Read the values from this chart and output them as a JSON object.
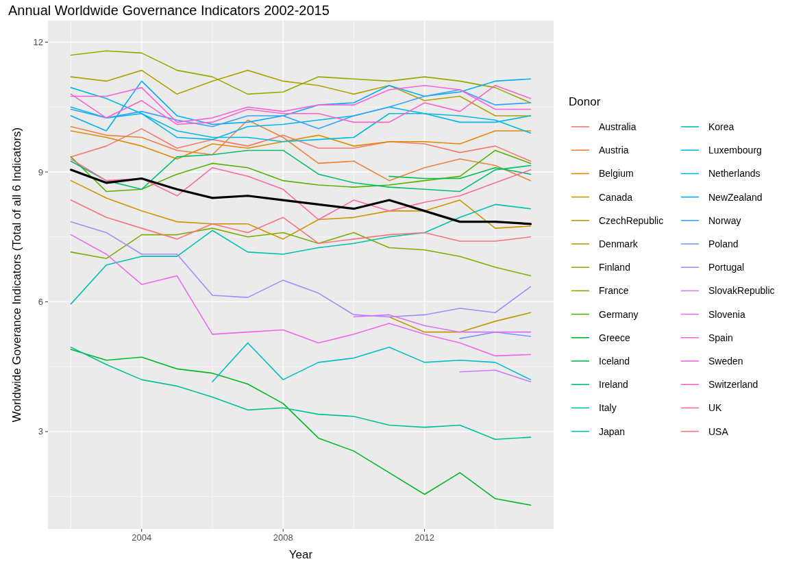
{
  "chart_data": {
    "type": "line",
    "title": "Annual Worldwide Governance Indicators 2002-2015",
    "xlabel": "Year",
    "ylabel": "Worldwide Goverance Indicators (Total of all 6 Indicators)",
    "legend_title": "Donor",
    "legend": "right",
    "grid": true,
    "x": [
      2002,
      2003,
      2004,
      2005,
      2006,
      2007,
      2008,
      2009,
      2010,
      2011,
      2012,
      2013,
      2014,
      2015
    ],
    "xlim": [
      2001.35,
      2015.65
    ],
    "xticks": [
      2004,
      2008,
      2012
    ],
    "ylim": [
      0.75,
      12.5
    ],
    "yticks": [
      3,
      6,
      9,
      12
    ],
    "series": [
      {
        "name": "Australia",
        "color": "#f8766d",
        "values": [
          9.35,
          9.6,
          10.0,
          9.55,
          9.75,
          9.6,
          9.85,
          9.55,
          9.55,
          9.7,
          9.65,
          9.45,
          9.6,
          9.25
        ]
      },
      {
        "name": "Austria",
        "color": "#ec823c",
        "values": [
          10.05,
          9.85,
          9.8,
          9.5,
          9.4,
          10.2,
          9.8,
          9.2,
          9.25,
          8.8,
          9.1,
          9.3,
          9.15,
          8.8
        ]
      },
      {
        "name": "Belgium",
        "color": "#e18a00",
        "values": [
          9.95,
          9.8,
          9.6,
          9.3,
          9.65,
          9.55,
          9.7,
          9.85,
          9.6,
          9.7,
          9.7,
          9.65,
          9.95,
          9.95
        ]
      },
      {
        "name": "Canada",
        "color": "#d09400",
        "values": [
          8.8,
          8.4,
          8.1,
          7.85,
          7.8,
          7.8,
          7.45,
          7.9,
          7.95,
          8.1,
          8.1,
          8.35,
          7.7,
          7.75
        ]
      },
      {
        "name": "CzechRepublic",
        "color": "#c09b00",
        "values": [
          null,
          null,
          null,
          null,
          null,
          null,
          null,
          null,
          null,
          5.65,
          5.3,
          5.3,
          5.55,
          5.75
        ]
      },
      {
        "name": "Denmark",
        "color": "#afa100",
        "values": [
          11.2,
          11.1,
          11.35,
          10.8,
          11.1,
          11.35,
          11.1,
          11.0,
          10.8,
          11.0,
          10.65,
          10.75,
          10.3,
          10.3
        ]
      },
      {
        "name": "Finland",
        "color": "#97a800",
        "values": [
          11.7,
          11.8,
          11.75,
          11.35,
          11.2,
          10.8,
          10.85,
          11.2,
          11.15,
          11.1,
          11.2,
          11.1,
          10.95,
          10.6
        ]
      },
      {
        "name": "France",
        "color": "#7cae00",
        "values": [
          7.15,
          7.0,
          7.55,
          7.55,
          7.7,
          7.5,
          7.6,
          7.35,
          7.6,
          7.25,
          7.2,
          7.05,
          6.8,
          6.6
        ]
      },
      {
        "name": "Germany",
        "color": "#55b300",
        "values": [
          9.35,
          8.55,
          8.6,
          8.95,
          9.2,
          9.1,
          8.8,
          8.7,
          8.65,
          8.7,
          8.8,
          8.9,
          9.5,
          9.2
        ]
      },
      {
        "name": "Greece",
        "color": "#00b81f",
        "values": [
          4.9,
          4.65,
          4.72,
          4.45,
          4.35,
          4.1,
          3.65,
          2.85,
          2.55,
          2.05,
          1.55,
          2.05,
          1.45,
          1.3
        ]
      },
      {
        "name": "Iceland",
        "color": "#00bb4e",
        "values": [
          null,
          null,
          null,
          null,
          null,
          null,
          null,
          null,
          null,
          8.9,
          8.85,
          8.85,
          9.1,
          8.95
        ]
      },
      {
        "name": "Ireland",
        "color": "#00be6c",
        "values": [
          9.25,
          8.8,
          8.6,
          9.35,
          9.4,
          9.5,
          9.5,
          8.95,
          8.75,
          8.65,
          8.6,
          8.55,
          9.05,
          9.15
        ]
      },
      {
        "name": "Italy",
        "color": "#00c094",
        "values": [
          4.95,
          4.55,
          4.2,
          4.05,
          3.8,
          3.5,
          3.55,
          3.4,
          3.35,
          3.15,
          3.1,
          3.15,
          2.82,
          2.87
        ]
      },
      {
        "name": "Japan",
        "color": "#00c0af",
        "values": [
          5.95,
          6.85,
          7.05,
          7.05,
          7.65,
          7.15,
          7.1,
          7.25,
          7.35,
          7.5,
          7.6,
          7.95,
          8.25,
          8.15
        ]
      },
      {
        "name": "Korea",
        "color": "#00bfc4",
        "values": [
          null,
          null,
          null,
          null,
          4.15,
          5.05,
          4.2,
          4.6,
          4.7,
          4.95,
          4.6,
          4.65,
          4.6,
          4.2
        ]
      },
      {
        "name": "Luxembourg",
        "color": "#00bbd9",
        "values": [
          10.95,
          10.7,
          10.35,
          9.95,
          9.8,
          9.8,
          9.7,
          9.75,
          9.8,
          10.35,
          10.35,
          10.3,
          10.2,
          9.9
        ]
      },
      {
        "name": "Netherlands",
        "color": "#00b6eb",
        "values": [
          10.5,
          10.25,
          10.35,
          9.8,
          9.75,
          10.05,
          10.1,
          10.2,
          10.3,
          10.5,
          10.35,
          10.15,
          10.15,
          10.3
        ]
      },
      {
        "name": "NewZealand",
        "color": "#00adfa",
        "values": [
          10.3,
          9.95,
          11.1,
          10.3,
          10.1,
          10.15,
          10.3,
          10.55,
          10.6,
          11.0,
          10.75,
          10.85,
          11.1,
          11.15
        ]
      },
      {
        "name": "Norway",
        "color": "#35a2ff",
        "values": [
          10.45,
          10.25,
          10.4,
          10.2,
          10.05,
          10.3,
          10.3,
          10.0,
          10.3,
          10.5,
          10.75,
          10.9,
          10.55,
          10.6
        ]
      },
      {
        "name": "Poland",
        "color": "#7997ff",
        "values": [
          null,
          null,
          null,
          null,
          null,
          null,
          null,
          null,
          null,
          null,
          null,
          5.15,
          5.3,
          5.2
        ]
      },
      {
        "name": "Portugal",
        "color": "#a58aff",
        "values": [
          7.85,
          7.6,
          7.1,
          7.1,
          6.15,
          6.1,
          6.5,
          6.2,
          5.7,
          5.65,
          5.7,
          5.85,
          5.75,
          6.35
        ]
      },
      {
        "name": "SlovakRepublic",
        "color": "#c77cff",
        "values": [
          null,
          null,
          null,
          null,
          null,
          null,
          null,
          null,
          null,
          null,
          null,
          4.38,
          4.42,
          4.15
        ]
      },
      {
        "name": "Slovenia",
        "color": "#de71f9",
        "values": [
          null,
          null,
          null,
          null,
          null,
          null,
          null,
          null,
          5.65,
          5.7,
          5.45,
          5.3,
          5.3,
          5.3
        ]
      },
      {
        "name": "Spain",
        "color": "#ed68ed",
        "values": [
          7.55,
          7.1,
          6.4,
          6.6,
          5.25,
          5.3,
          5.35,
          5.05,
          5.25,
          5.5,
          5.25,
          5.05,
          4.75,
          4.78
        ]
      },
      {
        "name": "Sweden",
        "color": "#f962dd",
        "values": [
          10.75,
          10.75,
          10.95,
          10.15,
          10.25,
          10.5,
          10.4,
          10.55,
          10.55,
          10.9,
          11.0,
          10.9,
          10.45,
          10.45
        ]
      },
      {
        "name": "Switzerland",
        "color": "#ff61c9",
        "values": [
          10.8,
          10.25,
          10.65,
          10.1,
          10.15,
          10.45,
          10.35,
          10.35,
          10.15,
          10.15,
          10.6,
          10.4,
          11.0,
          10.7
        ]
      },
      {
        "name": "UK",
        "color": "#ff67a4",
        "values": [
          9.3,
          8.8,
          8.85,
          8.45,
          9.1,
          8.9,
          8.6,
          7.9,
          8.35,
          8.1,
          8.3,
          8.45,
          8.75,
          9.05
        ]
      },
      {
        "name": "USA",
        "color": "#fb727e",
        "values": [
          8.35,
          7.95,
          7.7,
          7.45,
          7.8,
          7.6,
          7.95,
          7.35,
          7.45,
          7.55,
          7.6,
          7.4,
          7.4,
          7.5
        ]
      },
      {
        "color": "#000000",
        "values": [
          9.05,
          8.75,
          8.85,
          8.6,
          8.4,
          8.45,
          8.35,
          8.25,
          8.15,
          8.35,
          8.1,
          7.85,
          7.85,
          7.8
        ]
      }
    ]
  }
}
